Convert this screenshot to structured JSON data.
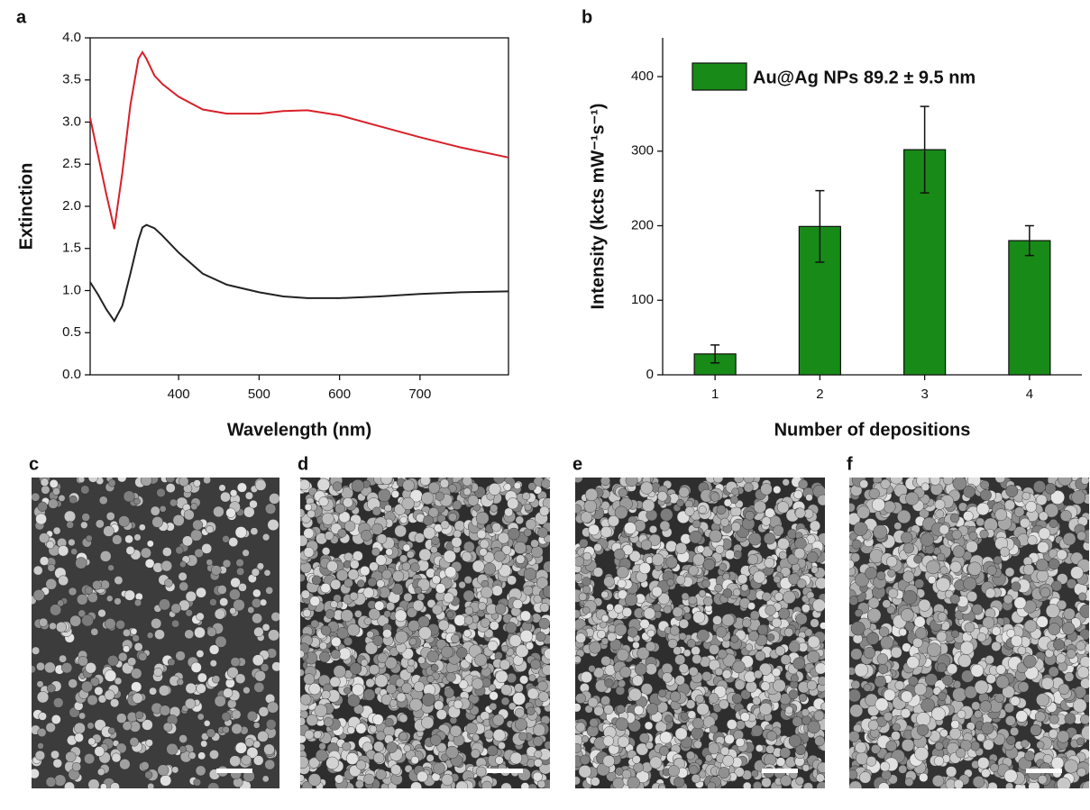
{
  "chart_data": [
    {
      "type": "line",
      "panel": "a",
      "xlabel": "Wavelength (nm)",
      "ylabel": "Extinction",
      "x": [
        290,
        300,
        310,
        320,
        330,
        340,
        350,
        355,
        360,
        370,
        380,
        400,
        430,
        460,
        500,
        530,
        560,
        600,
        650,
        700,
        750,
        810
      ],
      "series": [
        {
          "color": "#d8202a",
          "values": [
            3.05,
            2.6,
            2.15,
            1.73,
            2.4,
            3.2,
            3.75,
            3.83,
            3.75,
            3.55,
            3.45,
            3.3,
            3.15,
            3.1,
            3.1,
            3.13,
            3.14,
            3.08,
            2.95,
            2.82,
            2.7,
            2.58
          ]
        },
        {
          "color": "#222222",
          "values": [
            1.1,
            0.95,
            0.78,
            0.64,
            0.82,
            1.2,
            1.6,
            1.75,
            1.78,
            1.74,
            1.65,
            1.45,
            1.2,
            1.07,
            0.98,
            0.93,
            0.91,
            0.91,
            0.93,
            0.96,
            0.98,
            0.99
          ]
        }
      ],
      "xlim": [
        290,
        810
      ],
      "xticks": [
        400,
        500,
        600,
        700
      ],
      "ylim": [
        0,
        4
      ],
      "yticks": [
        {
          "value": 0,
          "label": "0.0"
        },
        {
          "value": 0.5,
          "label": "0.5"
        },
        {
          "value": 1,
          "label": "1.0"
        },
        {
          "value": 1.5,
          "label": "1.5"
        },
        {
          "value": 2,
          "label": "2.0"
        },
        {
          "value": 2.5,
          "label": "2.5"
        },
        {
          "value": 3,
          "label": "3.0"
        },
        {
          "value": 3.5,
          "label": "3.5"
        },
        {
          "value": 4,
          "label": "4.0"
        }
      ]
    },
    {
      "type": "bar",
      "panel": "b",
      "xlabel": "Number of depositions",
      "ylabel": "Intensity (kcts mW⁻¹s⁻¹)",
      "categories": [
        "1",
        "2",
        "3",
        "4"
      ],
      "series": [
        {
          "name": "Au@Ag NPs 89.2 ± 9.5 nm",
          "color": "#188a18",
          "values": [
            28,
            199,
            302,
            180
          ],
          "errors": [
            12,
            48,
            58,
            20
          ]
        }
      ],
      "ylim": [
        0,
        452
      ],
      "yticks": [
        0,
        100,
        200,
        300,
        400
      ],
      "legend": "upper-left"
    }
  ],
  "images": [
    {
      "label": "c"
    },
    {
      "label": "d"
    },
    {
      "label": "e"
    },
    {
      "label": "f"
    }
  ]
}
